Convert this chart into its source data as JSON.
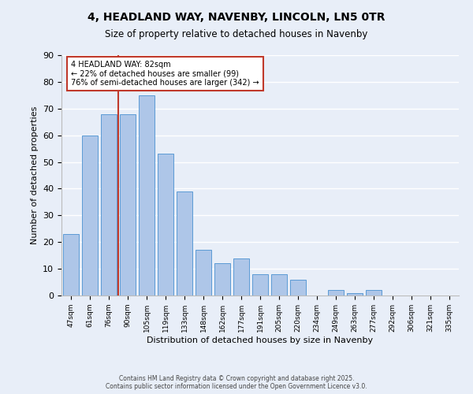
{
  "title1": "4, HEADLAND WAY, NAVENBY, LINCOLN, LN5 0TR",
  "title2": "Size of property relative to detached houses in Navenby",
  "xlabel": "Distribution of detached houses by size in Navenby",
  "ylabel": "Number of detached properties",
  "categories": [
    "47sqm",
    "61sqm",
    "76sqm",
    "90sqm",
    "105sqm",
    "119sqm",
    "133sqm",
    "148sqm",
    "162sqm",
    "177sqm",
    "191sqm",
    "205sqm",
    "220sqm",
    "234sqm",
    "249sqm",
    "263sqm",
    "277sqm",
    "292sqm",
    "306sqm",
    "321sqm",
    "335sqm"
  ],
  "values": [
    23,
    60,
    68,
    68,
    75,
    53,
    39,
    17,
    12,
    14,
    8,
    8,
    6,
    0,
    2,
    1,
    2,
    0,
    0,
    0,
    0
  ],
  "bar_color": "#aec6e8",
  "bar_edge_color": "#5b9bd5",
  "bar_width": 0.85,
  "vline_x_index": 2.5,
  "vline_color": "#c0392b",
  "annotation_text": "4 HEADLAND WAY: 82sqm\n← 22% of detached houses are smaller (99)\n76% of semi-detached houses are larger (342) →",
  "annotation_box_color": "#ffffff",
  "annotation_border_color": "#c0392b",
  "ylim": [
    0,
    90
  ],
  "yticks": [
    0,
    10,
    20,
    30,
    40,
    50,
    60,
    70,
    80,
    90
  ],
  "background_color": "#e8eef8",
  "grid_color": "#ffffff",
  "footnote": "Contains HM Land Registry data © Crown copyright and database right 2025.\nContains public sector information licensed under the Open Government Licence v3.0."
}
